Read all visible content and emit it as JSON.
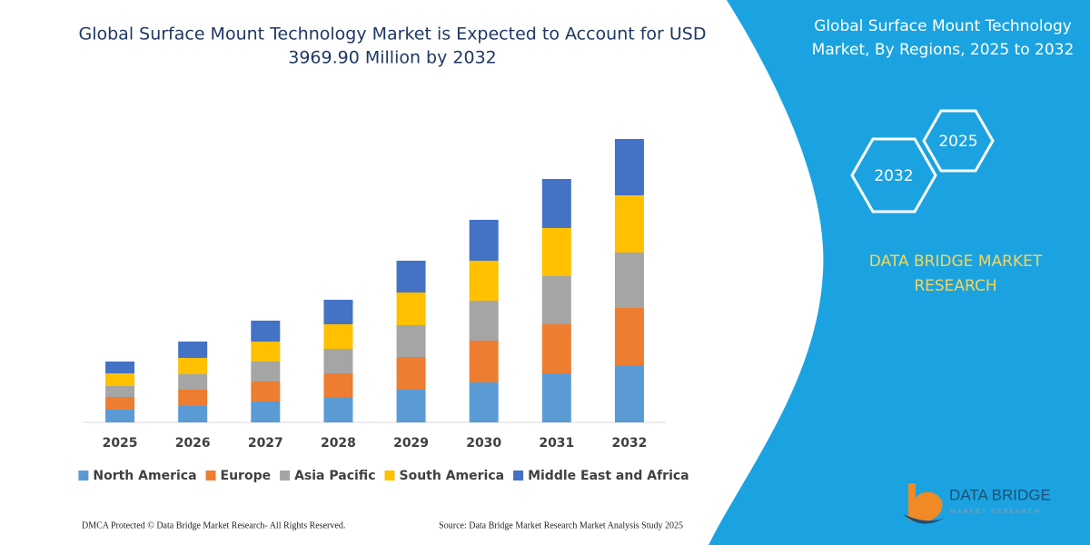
{
  "chart_data": {
    "type": "stacked-bar",
    "title": [
      "Global Surface Mount Technology Market is Expected to Account for USD",
      "3969.90 Million by 2032"
    ],
    "categories": [
      "2025",
      "2026",
      "2027",
      "2028",
      "2029",
      "2030",
      "2031",
      "2032"
    ],
    "series": [
      {
        "name": "North America",
        "color": "#5b9bd5",
        "values": [
          14,
          18,
          23,
          28,
          36,
          44,
          54,
          63
        ]
      },
      {
        "name": "Europe",
        "color": "#ed7d31",
        "values": [
          14,
          18,
          22,
          26,
          36,
          46,
          54,
          63
        ]
      },
      {
        "name": "Asia Pacific",
        "color": "#a5a5a5",
        "values": [
          12,
          17,
          22,
          27,
          35,
          44,
          53,
          61
        ]
      },
      {
        "name": "South America",
        "color": "#ffc000",
        "values": [
          14,
          18,
          22,
          27,
          36,
          44,
          53,
          63
        ]
      },
      {
        "name": "Middle East and Africa",
        "color": "#4472c4",
        "values": [
          13,
          18,
          23,
          27,
          35,
          45,
          54,
          62
        ]
      }
    ],
    "ylim": [
      0,
      325
    ]
  },
  "panel": {
    "title": [
      "Global Surface Mount Technology",
      "Market, By Regions, 2025 to 2032"
    ],
    "hexagons": [
      "2025",
      "2032"
    ],
    "brand": [
      "DATA BRIDGE MARKET",
      "RESEARCH"
    ],
    "logo": "DATA BRIDGE",
    "logo_sub": "MARKET RESEARCH"
  },
  "footer": {
    "left": "DMCA Protected © Data Bridge Market Research-  All Rights Reserved.",
    "right": "Source: Data Bridge Market Research  Market Analysis Study 2025"
  }
}
